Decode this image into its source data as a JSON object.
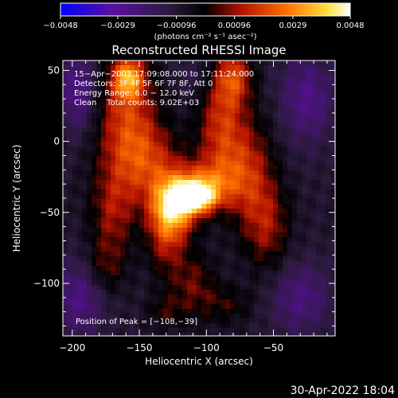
{
  "chart_data": {
    "type": "heatmap",
    "title": "Reconstructed RHESSI Image",
    "xlabel": "Heliocentric X (arcsec)",
    "ylabel": "Heliocentric Y (arcsec)",
    "xlim": [
      -207,
      -4
    ],
    "ylim": [
      -137,
      57
    ],
    "x_ticks": [
      -200,
      -150,
      -100,
      -50
    ],
    "y_ticks": [
      50,
      0,
      -50,
      -100
    ],
    "colorbar": {
      "range": [
        -0.0048,
        0.0048
      ],
      "tick_values": [
        -0.0048,
        -0.0029,
        -0.00096,
        0.00096,
        0.0029,
        0.0048
      ],
      "tick_labels": [
        "−0.0048",
        "−0.0029",
        "−0.00096",
        "0.00096",
        "0.0029",
        "0.0048"
      ],
      "unit_text": "(photons cm⁻² s⁻¹ asec⁻²)",
      "colors": [
        "#0000ff",
        "#5a0fa0",
        "#2a1a3a",
        "#000000",
        "#b01000",
        "#ff7000",
        "#ffe040",
        "#ffffff"
      ]
    },
    "annotations": [
      "15−Apr−2003 17:09:08.000 to 17:11:24.000",
      "Detectors: 3F 4F 5F 6F 7F 8F, Att 0",
      "Energy Range: 6.0 − 12.0 keV",
      "Clean    Total counts: 9.02E+03"
    ],
    "peak_label": "Position of Peak = [−108,−39]",
    "peak": {
      "x": -108,
      "y": -39
    },
    "emission_blobs": [
      {
        "x": -108,
        "y": -39,
        "sx": 10,
        "sy": 7,
        "v": 0.0048
      },
      {
        "x": -122,
        "y": -45,
        "sx": 12,
        "sy": 14,
        "v": 0.0036
      },
      {
        "x": -100,
        "y": -30,
        "sx": 16,
        "sy": 12,
        "v": 0.0026
      },
      {
        "x": -130,
        "y": -60,
        "sx": 10,
        "sy": 22,
        "v": 0.0024
      },
      {
        "x": -160,
        "y": 20,
        "sx": 16,
        "sy": 28,
        "v": 0.0024
      },
      {
        "x": -158,
        "y": 45,
        "sx": 8,
        "sy": 10,
        "v": 0.0032
      },
      {
        "x": -145,
        "y": -15,
        "sx": 18,
        "sy": 20,
        "v": 0.0022
      },
      {
        "x": -90,
        "y": 10,
        "sx": 12,
        "sy": 24,
        "v": 0.0022
      },
      {
        "x": -80,
        "y": 45,
        "sx": 10,
        "sy": 14,
        "v": 0.0026
      },
      {
        "x": -70,
        "y": -20,
        "sx": 14,
        "sy": 26,
        "v": 0.0022
      },
      {
        "x": -55,
        "y": -60,
        "sx": 12,
        "sy": 22,
        "v": 0.0018
      },
      {
        "x": -170,
        "y": -50,
        "sx": 12,
        "sy": 22,
        "v": 0.0018
      },
      {
        "x": -175,
        "y": -90,
        "sx": 10,
        "sy": 14,
        "v": 0.0012
      },
      {
        "x": -110,
        "y": -100,
        "sx": 12,
        "sy": 16,
        "v": 0.0014
      },
      {
        "x": -85,
        "y": -115,
        "sx": 14,
        "sy": 10,
        "v": 0.001
      },
      {
        "x": -130,
        "y": -120,
        "sx": 10,
        "sy": 8,
        "v": 0.001
      },
      {
        "x": -195,
        "y": 35,
        "sx": 10,
        "sy": 20,
        "v": -0.0018
      },
      {
        "x": -195,
        "y": -110,
        "sx": 14,
        "sy": 18,
        "v": -0.0016
      },
      {
        "x": -25,
        "y": 30,
        "sx": 14,
        "sy": 22,
        "v": -0.0016
      },
      {
        "x": -30,
        "y": -110,
        "sx": 16,
        "sy": 18,
        "v": -0.0014
      },
      {
        "x": -110,
        "y": 45,
        "sx": 10,
        "sy": 10,
        "v": -0.0006
      }
    ]
  },
  "footer_timestamp": "30-Apr-2022 18:04"
}
